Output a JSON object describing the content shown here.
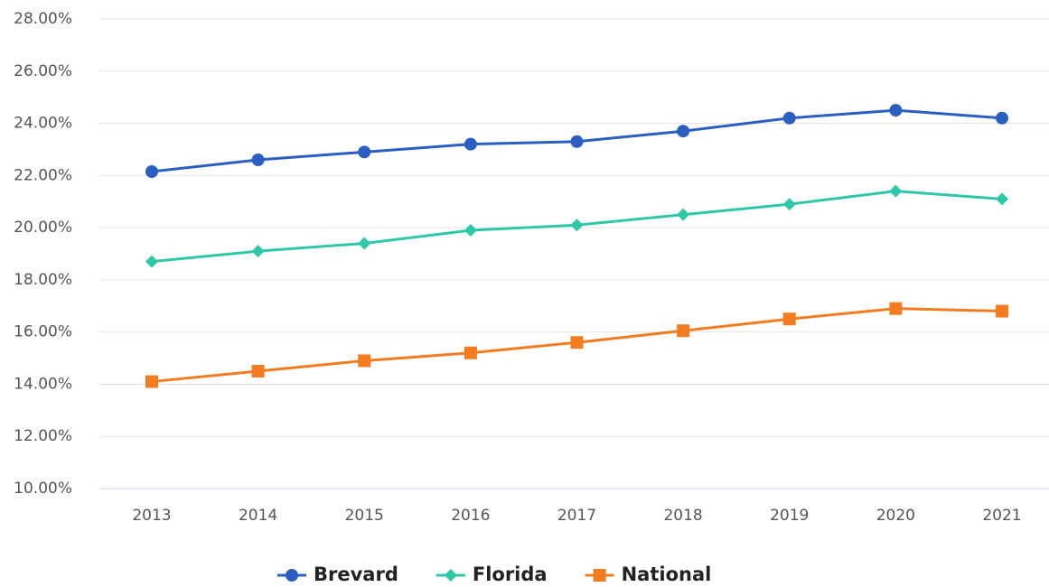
{
  "chart_data": {
    "type": "line",
    "categories": [
      "2013",
      "2014",
      "2015",
      "2016",
      "2017",
      "2018",
      "2019",
      "2020",
      "2021"
    ],
    "series": [
      {
        "name": "Brevard",
        "color": "#2a5fc1",
        "marker": "circle",
        "values": [
          22.15,
          22.6,
          22.9,
          23.2,
          23.3,
          23.7,
          24.2,
          24.5,
          24.2
        ]
      },
      {
        "name": "Florida",
        "color": "#2ec8a8",
        "marker": "diamond",
        "values": [
          18.7,
          19.1,
          19.4,
          19.9,
          20.1,
          20.5,
          20.9,
          21.4,
          21.1
        ]
      },
      {
        "name": "National",
        "color": "#f47c20",
        "marker": "square",
        "values": [
          14.1,
          14.5,
          14.9,
          15.2,
          15.6,
          16.05,
          16.5,
          16.9,
          16.8
        ]
      }
    ],
    "ylim": [
      10,
      28
    ],
    "yticks": [
      {
        "value": 10,
        "label": "10.00%"
      },
      {
        "value": 12,
        "label": "12.00%"
      },
      {
        "value": 14,
        "label": "14.00%"
      },
      {
        "value": 16,
        "label": "16.00%"
      },
      {
        "value": 18,
        "label": "18.00%"
      },
      {
        "value": 20,
        "label": "20.00%"
      },
      {
        "value": 22,
        "label": "22.00%"
      },
      {
        "value": 24,
        "label": "24.00%"
      },
      {
        "value": 26,
        "label": "26.00%"
      },
      {
        "value": 28,
        "label": "28.00%"
      }
    ],
    "grid": true,
    "legend": "bottom"
  }
}
